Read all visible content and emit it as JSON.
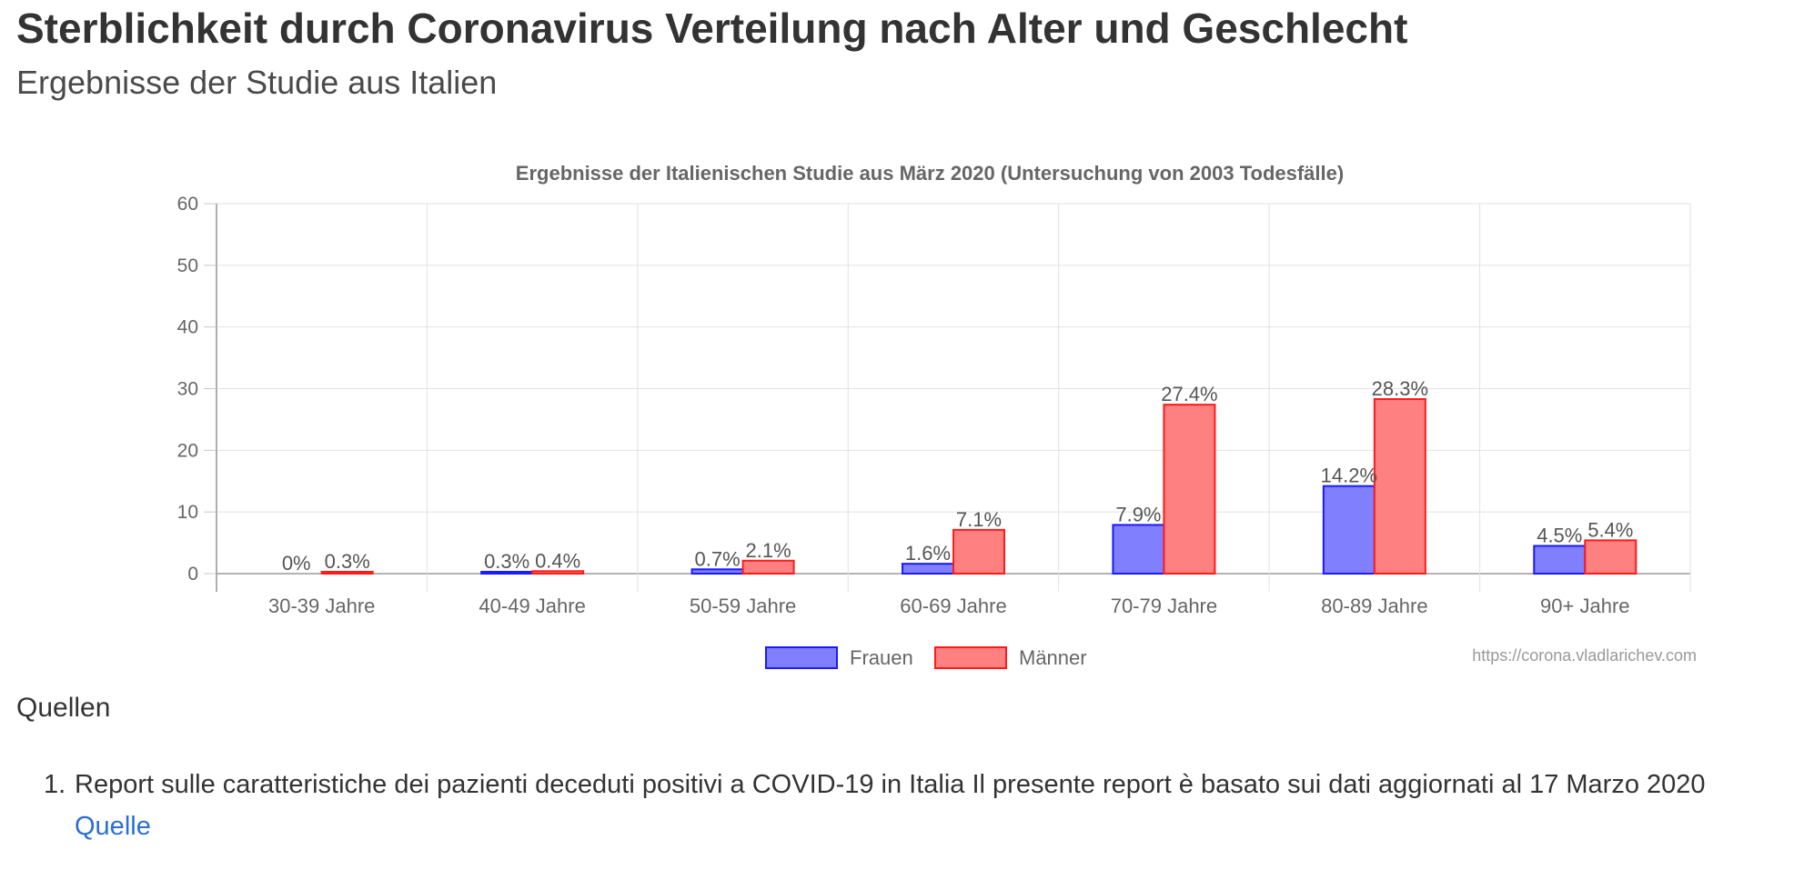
{
  "page": {
    "title": "Sterblichkeit durch Coronavirus Verteilung nach Alter und Geschlecht",
    "subtitle": "Ergebnisse der Studie aus Italien"
  },
  "chart_data": {
    "type": "bar",
    "title": "Ergebnisse der Italienischen Studie aus März 2020 (Untersuchung von 2003 Todesfälle)",
    "xlabel": "",
    "ylabel": "",
    "ylim": [
      0,
      60
    ],
    "yticks": [
      0,
      10,
      20,
      30,
      40,
      50,
      60
    ],
    "grid": true,
    "legend_position": "bottom",
    "categories": [
      "30-39 Jahre",
      "40-49 Jahre",
      "50-59 Jahre",
      "60-69 Jahre",
      "70-79 Jahre",
      "80-89 Jahre",
      "90+ Jahre"
    ],
    "series": [
      {
        "name": "Frauen",
        "values": [
          0,
          0.3,
          0.7,
          1.6,
          7.9,
          14.2,
          4.5
        ],
        "labels": [
          "0%",
          "0.3%",
          "0.7%",
          "1.6%",
          "7.9%",
          "14.2%",
          "4.5%"
        ],
        "fill": "#8080ff",
        "stroke": "#1a1aff"
      },
      {
        "name": "Männer",
        "values": [
          0.3,
          0.4,
          2.1,
          7.1,
          27.4,
          28.3,
          5.4
        ],
        "labels": [
          "0.3%",
          "0.4%",
          "2.1%",
          "7.1%",
          "27.4%",
          "28.3%",
          "5.4%"
        ],
        "fill": "#ff8080",
        "stroke": "#ff1a1a"
      }
    ],
    "watermark": "https://corona.vladlarichev.com"
  },
  "sources": {
    "heading": "Quellen",
    "items": [
      {
        "number": "1.",
        "text": "Report sulle caratteristiche dei pazienti deceduti positivi a COVID-19 in Italia Il presente report è basato sui dati aggiornati al 17 Marzo 2020",
        "link_label": "Quelle"
      }
    ]
  }
}
